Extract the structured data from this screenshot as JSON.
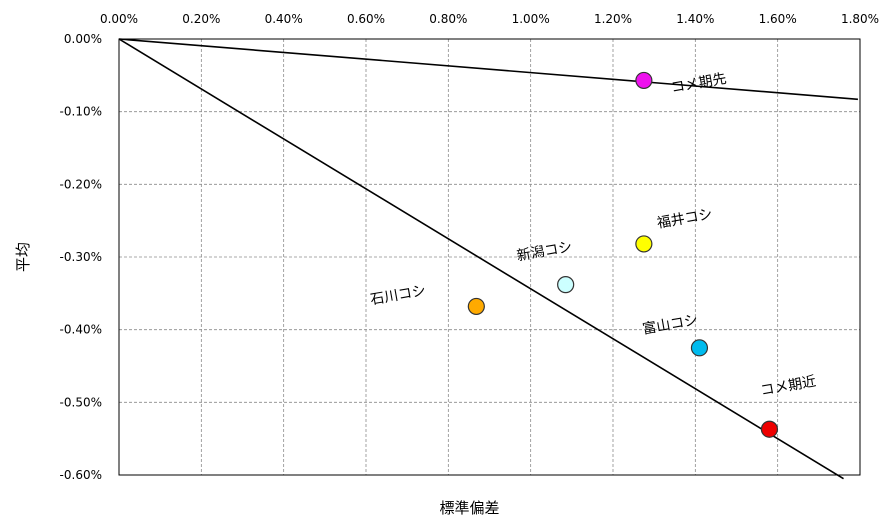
{
  "chart_data": {
    "type": "scatter",
    "xlabel": "標準偏差",
    "ylabel": "平均",
    "xlim": [
      0,
      0.018
    ],
    "ylim": [
      -0.006,
      0
    ],
    "x_ticks": [
      "0.00%",
      "0.20%",
      "0.40%",
      "0.60%",
      "0.80%",
      "1.00%",
      "1.20%",
      "1.40%",
      "1.60%",
      "1.80%"
    ],
    "y_ticks": [
      "0.00%",
      "-0.10%",
      "-0.20%",
      "-0.30%",
      "-0.40%",
      "-0.50%",
      "-0.60%"
    ],
    "x_axis_position": "top",
    "grid": true,
    "points": [
      {
        "label": "コメ期先",
        "x": 0.01275,
        "y": -0.00057,
        "color": "#ee11ee"
      },
      {
        "label": "福井コシ",
        "x": 0.01275,
        "y": -0.00282,
        "color": "#ffff00"
      },
      {
        "label": "新潟コシ",
        "x": 0.01085,
        "y": -0.00338,
        "color": "#ccffff"
      },
      {
        "label": "石川コシ",
        "x": 0.00868,
        "y": -0.00368,
        "color": "#ffaa00"
      },
      {
        "label": "富山コシ",
        "x": 0.0141,
        "y": -0.00425,
        "color": "#00bbee"
      },
      {
        "label": "コメ期近",
        "x": 0.0158,
        "y": -0.00537,
        "color": "#ee0000"
      }
    ],
    "lines": [
      {
        "from": [
          0,
          0
        ],
        "to": [
          0.01795,
          -0.00083
        ]
      },
      {
        "from": [
          0,
          0
        ],
        "to": [
          0.0176,
          -0.00605
        ]
      }
    ]
  }
}
